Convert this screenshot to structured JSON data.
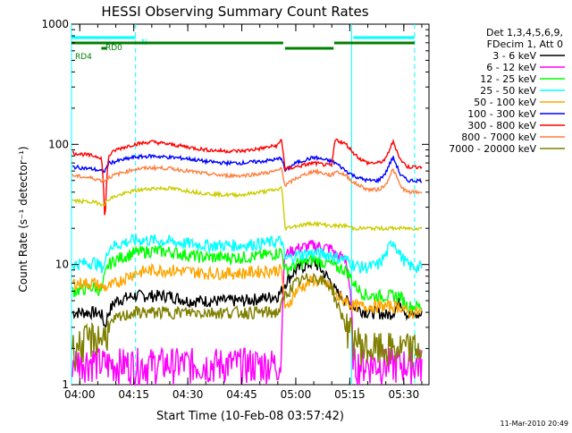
{
  "chart_data": {
    "type": "line",
    "title": "HESSI Observing Summary Count Rates",
    "xlabel": "Start Time (10-Feb-08 03:57:42)",
    "ylabel": "Count Rate (s⁻¹ detector⁻¹)",
    "yscale": "log",
    "ylim": [
      1,
      1000
    ],
    "xlim": [
      "03:57:42",
      "05:37:00"
    ],
    "x_ticks": [
      "04:00",
      "04:15",
      "04:30",
      "04:45",
      "05:00",
      "05:15",
      "05:30"
    ],
    "y_ticks": [
      1,
      10,
      100,
      1000
    ],
    "y_tick_labels": [
      "1",
      "10",
      "100",
      "1000"
    ],
    "legend_position": "right",
    "legend_header": [
      "Det 1,3,4,5,6,9,",
      "FDecim 1, Att 0"
    ],
    "footer_date": "11-Mar-2010 20:49",
    "flags": [
      {
        "label": "N",
        "color": "#00ffff",
        "intervals": [
          [
            "03:57:42",
            "04:15:30"
          ],
          [
            "05:16:00",
            "05:33:00"
          ]
        ]
      },
      {
        "label": "RD0",
        "color": "#007f00",
        "intervals": [
          [
            "03:57:42",
            "04:56:30"
          ],
          [
            "05:10:40",
            "05:33:00"
          ]
        ]
      },
      {
        "label": "RD4",
        "color": "#007f00",
        "intervals": [
          [
            "04:06:00",
            "04:07:30"
          ],
          [
            "04:57:00",
            "05:10:30"
          ]
        ]
      }
    ],
    "vertical_lines": [
      {
        "time": "03:57:42",
        "color": "#00ffff",
        "style": "solid"
      },
      {
        "time": "04:15:30",
        "color": "#00ffff",
        "style": "dashed"
      },
      {
        "time": "05:15:30",
        "color": "#00ffff",
        "style": "solid"
      },
      {
        "time": "05:33:00",
        "color": "#00ffff",
        "style": "dashed"
      }
    ],
    "x": [
      "03:58",
      "04:04",
      "04:06",
      "04:07",
      "04:08",
      "04:10",
      "04:15",
      "04:20",
      "04:25",
      "04:30",
      "04:35",
      "04:40",
      "04:45",
      "04:50",
      "04:55",
      "04:56",
      "04:57",
      "05:00",
      "05:05",
      "05:10",
      "05:11",
      "05:14",
      "05:16",
      "05:18",
      "05:20",
      "05:23",
      "05:25",
      "05:27",
      "05:29",
      "05:31",
      "05:33"
    ],
    "series": [
      {
        "name": "3 - 6 keV",
        "color": "#000000",
        "values": [
          4.0,
          4.0,
          3.9,
          3.0,
          4.0,
          5.0,
          5.5,
          5.5,
          5.5,
          5.0,
          5.0,
          5.0,
          5.0,
          5.2,
          5.5,
          6.0,
          7.0,
          9.0,
          10.5,
          7.0,
          6.0,
          5.0,
          4.5,
          4.2,
          4.0,
          4.0,
          3.8,
          4.0,
          5.0,
          3.8,
          3.8
        ]
      },
      {
        "name": "6 - 12 keV",
        "color": "#ff00ff",
        "values": [
          1.6,
          1.6,
          1.5,
          1.5,
          1.5,
          1.5,
          1.5,
          1.5,
          1.5,
          1.5,
          1.5,
          1.5,
          1.5,
          1.5,
          1.5,
          1.5,
          12.0,
          13.5,
          14.5,
          13.5,
          12.0,
          11.0,
          1.5,
          1.5,
          1.5,
          1.5,
          1.5,
          1.5,
          1.5,
          1.5,
          1.5
        ]
      },
      {
        "name": "12 - 25 keV",
        "color": "#00ff00",
        "values": [
          6.0,
          6.5,
          6.0,
          8.0,
          10.0,
          11.0,
          12.5,
          13.0,
          12.8,
          12.0,
          11.5,
          11.5,
          11.5,
          11.8,
          12.5,
          13.0,
          9.0,
          10.0,
          11.0,
          10.0,
          9.5,
          9.0,
          7.0,
          6.0,
          5.5,
          5.5,
          5.5,
          5.5,
          5.5,
          4.5,
          4.5
        ]
      },
      {
        "name": "25 - 50 keV",
        "color": "#00ffff",
        "values": [
          10.0,
          10.5,
          9.5,
          10.0,
          14.0,
          14.5,
          16.0,
          16.0,
          15.5,
          15.0,
          14.5,
          14.5,
          14.5,
          15.0,
          15.5,
          16.0,
          11.0,
          12.0,
          12.5,
          12.0,
          11.5,
          11.0,
          10.0,
          9.5,
          9.5,
          10.0,
          12.0,
          16.0,
          12.0,
          10.0,
          9.5
        ]
      },
      {
        "name": "50 - 100 keV",
        "color": "#ffa500",
        "values": [
          7.0,
          7.0,
          6.5,
          6.5,
          6.5,
          7.0,
          8.5,
          9.0,
          9.0,
          8.8,
          8.5,
          8.5,
          8.5,
          8.8,
          9.0,
          9.0,
          4.0,
          6.0,
          7.5,
          6.5,
          5.5,
          5.0,
          4.5,
          4.5,
          4.5,
          4.5,
          4.5,
          4.5,
          4.5,
          4.0,
          4.0
        ]
      },
      {
        "name": "100 - 300 keV",
        "color": "#0000ff",
        "values": [
          65,
          62,
          60,
          60,
          70,
          72,
          78,
          80,
          78,
          76,
          72,
          70,
          70,
          72,
          75,
          78,
          60,
          70,
          78,
          72,
          70,
          60,
          55,
          52,
          50,
          50,
          58,
          78,
          56,
          50,
          50
        ]
      },
      {
        "name": "300 - 800 keV",
        "color": "#ff0000",
        "values": [
          85,
          80,
          78,
          20,
          80,
          90,
          100,
          105,
          100,
          95,
          90,
          88,
          88,
          92,
          98,
          110,
          62,
          65,
          70,
          66,
          110,
          100,
          85,
          75,
          70,
          70,
          75,
          105,
          75,
          65,
          65
        ]
      },
      {
        "name": "800 - 7000 keV",
        "color": "#ff7f3f",
        "values": [
          55,
          52,
          50,
          50,
          53,
          56,
          62,
          64,
          63,
          60,
          57,
          55,
          55,
          57,
          60,
          64,
          45,
          52,
          60,
          55,
          60,
          55,
          48,
          45,
          42,
          42,
          46,
          62,
          45,
          40,
          40
        ]
      },
      {
        "name": "7000 - 20000 keV",
        "color": "#7f7f00",
        "values": [
          2.0,
          2.5,
          2.5,
          2.5,
          3.0,
          3.5,
          4.0,
          4.0,
          4.0,
          4.0,
          4.0,
          4.0,
          4.0,
          4.0,
          4.0,
          4.5,
          5.5,
          7.0,
          8.0,
          6.5,
          5.0,
          3.0,
          2.5,
          2.2,
          2.0,
          2.0,
          2.0,
          2.0,
          2.0,
          2.0,
          2.0
        ]
      },
      {
        "name": "",
        "color": "#cccc00",
        "values": [
          34,
          33,
          32,
          32,
          35,
          37,
          41,
          43,
          43,
          41,
          39,
          38,
          38,
          40,
          42,
          44,
          20,
          21,
          22,
          21,
          21,
          21,
          20,
          20,
          20,
          20,
          20,
          20,
          20,
          20,
          20
        ]
      }
    ]
  }
}
